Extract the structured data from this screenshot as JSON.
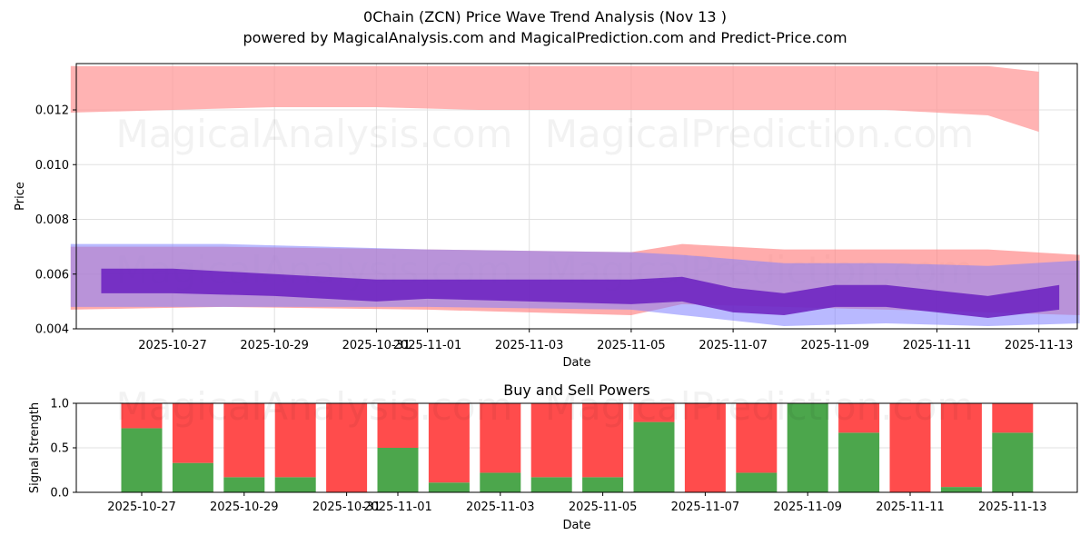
{
  "header": {
    "title": "0Chain (ZCN) Price Wave Trend Analysis (Nov 13 )",
    "subtitle": "powered by MagicalAnalysis.com and MagicalPrediction.com and Predict-Price.com"
  },
  "watermarks": [
    "MagicalAnalysis.com",
    "MagicalPrediction.com"
  ],
  "colors": {
    "red_band": "#ff6666",
    "blue_band": "#6666ff",
    "purple_core": "#7030b8",
    "buy": "#4ca64c",
    "sell": "#ff4c4c",
    "grid": "#e0e0e0"
  },
  "chart_data": [
    {
      "type": "area",
      "title": "0Chain (ZCN) Price Wave Trend Analysis (Nov 13 )",
      "xlabel": "Date",
      "ylabel": "Price",
      "ylim": [
        0.004,
        0.0136
      ],
      "yticks": [
        "0.004",
        "0.006",
        "0.008",
        "0.010",
        "0.012"
      ],
      "xticks": [
        "2025-10-27",
        "2025-10-29",
        "2025-10-31",
        "2025-11-01",
        "2025-11-03",
        "2025-11-05",
        "2025-11-07",
        "2025-11-09",
        "2025-11-11",
        "2025-11-13"
      ],
      "grid": true,
      "series": [
        {
          "name": "upper red band",
          "x": [
            "2025-10-25",
            "2025-10-27",
            "2025-10-29",
            "2025-10-31",
            "2025-11-02",
            "2025-11-04",
            "2025-11-06",
            "2025-11-08",
            "2025-11-10",
            "2025-11-12",
            "2025-11-13"
          ],
          "upper": [
            0.0136,
            0.0136,
            0.0136,
            0.0136,
            0.0136,
            0.0136,
            0.0136,
            0.0136,
            0.0136,
            0.0136,
            0.0134
          ],
          "lower": [
            0.0119,
            0.012,
            0.0121,
            0.0121,
            0.012,
            0.012,
            0.012,
            0.012,
            0.012,
            0.0118,
            0.0112
          ]
        },
        {
          "name": "outer red band",
          "x": [
            "2025-10-25",
            "2025-10-28",
            "2025-11-01",
            "2025-11-05",
            "2025-11-06",
            "2025-11-08",
            "2025-11-10",
            "2025-11-12",
            "2025-11-13.8"
          ],
          "upper": [
            0.007,
            0.007,
            0.0069,
            0.0068,
            0.0071,
            0.0069,
            0.0069,
            0.0069,
            0.0067
          ],
          "lower": [
            0.0047,
            0.0048,
            0.0047,
            0.0045,
            0.0049,
            0.0048,
            0.0047,
            0.0046,
            0.0045
          ]
        },
        {
          "name": "outer blue band",
          "x": [
            "2025-10-25",
            "2025-10-28",
            "2025-11-01",
            "2025-11-05",
            "2025-11-06",
            "2025-11-08",
            "2025-11-10",
            "2025-11-12",
            "2025-11-13.8"
          ],
          "upper": [
            0.0071,
            0.0071,
            0.0069,
            0.0068,
            0.0067,
            0.0064,
            0.0064,
            0.0063,
            0.0065
          ],
          "lower": [
            0.0048,
            0.0048,
            0.0048,
            0.0047,
            0.0045,
            0.0041,
            0.0042,
            0.0041,
            0.0042
          ]
        },
        {
          "name": "core purple wave",
          "x": [
            "2025-10-25.6",
            "2025-10-27",
            "2025-10-29",
            "2025-10-31",
            "2025-11-01",
            "2025-11-03",
            "2025-11-05",
            "2025-11-06",
            "2025-11-07",
            "2025-11-08",
            "2025-11-09",
            "2025-11-10",
            "2025-11-11",
            "2025-11-12",
            "2025-11-13.4"
          ],
          "upper": [
            0.0062,
            0.0062,
            0.006,
            0.0058,
            0.0058,
            0.0058,
            0.0058,
            0.0059,
            0.0055,
            0.0053,
            0.0056,
            0.0056,
            0.0054,
            0.0052,
            0.0056
          ],
          "lower": [
            0.0053,
            0.0053,
            0.0052,
            0.005,
            0.0051,
            0.005,
            0.0049,
            0.005,
            0.0046,
            0.0045,
            0.0048,
            0.0048,
            0.0046,
            0.0044,
            0.0047
          ]
        }
      ]
    },
    {
      "type": "bar",
      "title": "Buy and Sell Powers",
      "xlabel": "Date",
      "ylabel": "Signal Strength",
      "ylim": [
        0,
        1
      ],
      "yticks": [
        "0.0",
        "0.5",
        "1.0"
      ],
      "xticks": [
        "2025-10-27",
        "2025-10-29",
        "2025-10-31",
        "2025-11-01",
        "2025-11-03",
        "2025-11-05",
        "2025-11-07",
        "2025-11-09",
        "2025-11-11",
        "2025-11-13"
      ],
      "categories": [
        "2025-10-27",
        "2025-10-28",
        "2025-10-29",
        "2025-10-30",
        "2025-10-31",
        "2025-11-01",
        "2025-11-02",
        "2025-11-03",
        "2025-11-04",
        "2025-11-05",
        "2025-11-06",
        "2025-11-07",
        "2025-11-08",
        "2025-11-09",
        "2025-11-10",
        "2025-11-11",
        "2025-11-12",
        "2025-11-13"
      ],
      "series": [
        {
          "name": "Buy",
          "color": "#4ca64c",
          "values": [
            0.72,
            0.33,
            0.17,
            0.17,
            0.0,
            0.5,
            0.11,
            0.22,
            0.17,
            0.17,
            0.79,
            0.0,
            0.22,
            1.0,
            0.67,
            0.0,
            0.06,
            0.67
          ]
        },
        {
          "name": "Sell",
          "color": "#ff4c4c",
          "values": [
            0.28,
            0.67,
            0.83,
            0.83,
            1.0,
            0.5,
            0.89,
            0.78,
            0.83,
            0.83,
            0.21,
            1.0,
            0.78,
            0.0,
            0.33,
            1.0,
            0.94,
            0.33
          ]
        }
      ],
      "grid": true
    }
  ]
}
